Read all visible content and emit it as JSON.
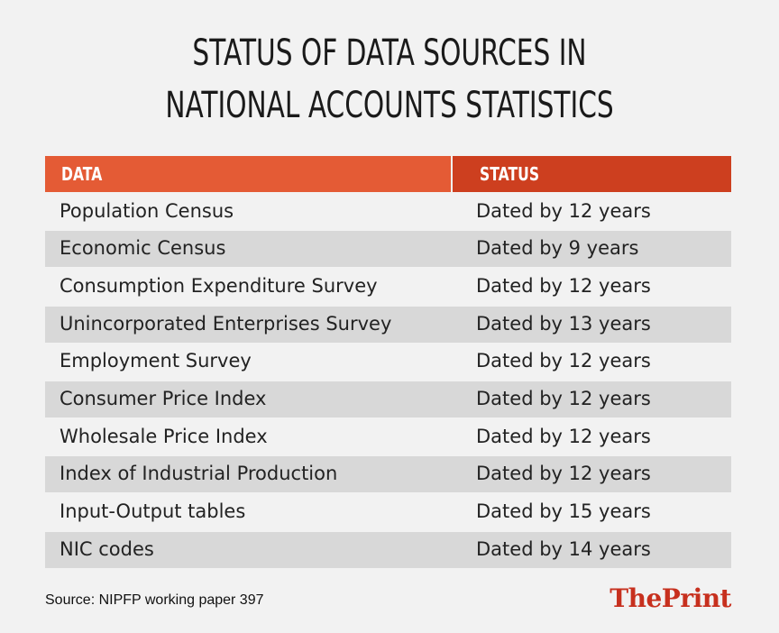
{
  "title": {
    "line1": "STATUS OF DATA SOURCES IN",
    "line2": "NATIONAL ACCOUNTS STATISTICS"
  },
  "table": {
    "headers": [
      "DATA",
      "STATUS"
    ],
    "rows": [
      [
        "Population Census",
        "Dated by 12 years"
      ],
      [
        "Economic Census",
        "Dated by 9 years"
      ],
      [
        "Consumption Expenditure Survey",
        "Dated by 12 years"
      ],
      [
        "Unincorporated Enterprises Survey",
        "Dated by 13 years"
      ],
      [
        "Employment Survey",
        "Dated by 12 years"
      ],
      [
        "Consumer Price Index",
        "Dated by 12 years"
      ],
      [
        "Wholesale Price Index",
        "Dated by 12 years"
      ],
      [
        "Index of Industrial Production",
        "Dated by 12 years"
      ],
      [
        "Input-Output tables",
        "Dated by 15 years"
      ],
      [
        "NIC codes",
        "Dated by 14 years"
      ]
    ]
  },
  "footer": {
    "source": "Source: NIPFP working paper 397",
    "logo": "ThePrint"
  },
  "colors": {
    "header_data": "#e45b35",
    "header_status": "#cd3f1f",
    "row_shade": "#d8d8d8",
    "logo": "#c7301e"
  }
}
